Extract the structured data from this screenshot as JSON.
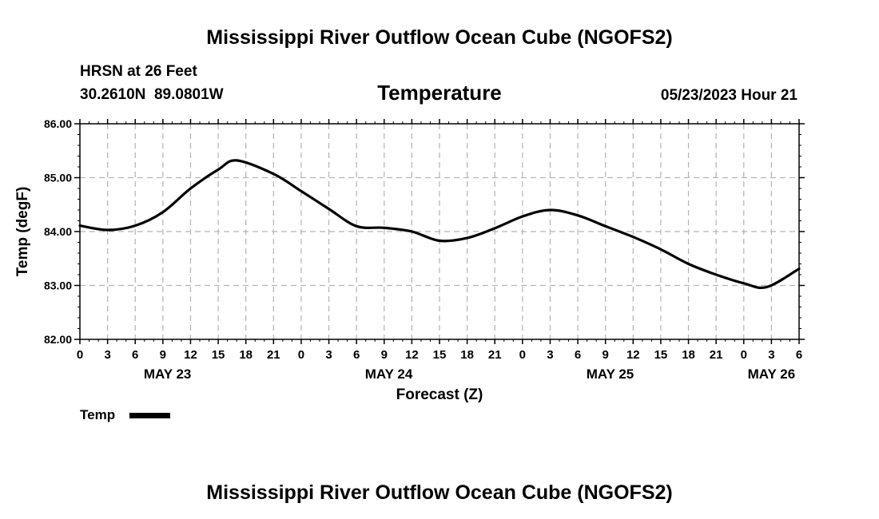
{
  "page": {
    "title_top": "Mississippi River Outflow Ocean Cube (NGOFS2)",
    "title_bottom": "Mississippi River Outflow Ocean Cube (NGOFS2)",
    "station_line1": "HRSN at 26 Feet",
    "station_line2": "30.2610N  89.0801W",
    "datetime": "05/23/2023 Hour 21"
  },
  "colors": {
    "line": "#000000",
    "grid": "#b3b3b3",
    "axis": "#000000"
  },
  "chart_data": {
    "type": "line",
    "title": "Temperature",
    "xlabel": "Forecast (Z)",
    "ylabel": "Temp (degF)",
    "xlim": [
      0,
      78
    ],
    "ylim": [
      82.0,
      86.0
    ],
    "grid": true,
    "yticks": [
      82.0,
      83.0,
      84.0,
      85.0,
      86.0
    ],
    "ytick_labels": [
      "82.00",
      "83.00",
      "84.00",
      "85.00",
      "86.00"
    ],
    "xticks": [
      0,
      3,
      6,
      9,
      12,
      15,
      18,
      21,
      24,
      27,
      30,
      33,
      36,
      39,
      42,
      45,
      48,
      51,
      54,
      57,
      60,
      63,
      66,
      69,
      72,
      75,
      78
    ],
    "xtick_labels": [
      "0",
      "3",
      "6",
      "9",
      "12",
      "15",
      "18",
      "21",
      "0",
      "3",
      "6",
      "9",
      "12",
      "15",
      "18",
      "21",
      "0",
      "3",
      "6",
      "9",
      "12",
      "15",
      "18",
      "21",
      "0",
      "3",
      "6"
    ],
    "date_labels": [
      {
        "label": "MAY 23",
        "hour": 9.5
      },
      {
        "label": "MAY 24",
        "hour": 33.5
      },
      {
        "label": "MAY 25",
        "hour": 57.5
      },
      {
        "label": "MAY 26",
        "hour": 75
      }
    ],
    "legend": {
      "label": "Temp",
      "placement": "bottom-left"
    },
    "series": [
      {
        "name": "Temp",
        "x": [
          0,
          3,
          6,
          9,
          12,
          15,
          17,
          21,
          24,
          27,
          30,
          33,
          36,
          39,
          42,
          45,
          48,
          51,
          54,
          57,
          60,
          63,
          66,
          69,
          72,
          74.5,
          78
        ],
        "values": [
          84.11,
          84.03,
          84.11,
          84.36,
          84.8,
          85.15,
          85.32,
          85.07,
          84.75,
          84.42,
          84.1,
          84.07,
          84.0,
          83.83,
          83.88,
          84.06,
          84.28,
          84.4,
          84.3,
          84.1,
          83.9,
          83.67,
          83.4,
          83.2,
          83.04,
          82.97,
          83.31
        ]
      }
    ]
  }
}
